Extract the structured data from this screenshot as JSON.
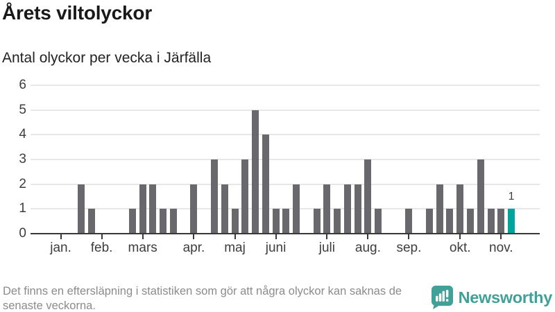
{
  "title": "Årets viltolyckor",
  "subtitle": "Antal olyckor per vecka i Järfälla",
  "chart_data": {
    "type": "bar",
    "title": "Årets viltolyckor",
    "subtitle": "Antal olyckor per vecka i Järfälla",
    "x_description": "veckor (weeks of the year, jan–nov)",
    "values_per_week": [
      0,
      0,
      2,
      1,
      0,
      0,
      0,
      1,
      2,
      2,
      1,
      1,
      0,
      2,
      0,
      3,
      2,
      1,
      3,
      5,
      4,
      1,
      1,
      2,
      0,
      1,
      2,
      1,
      2,
      2,
      3,
      1,
      0,
      0,
      1,
      0,
      1,
      2,
      1,
      2,
      1,
      3,
      1,
      1,
      1
    ],
    "first_week": 1,
    "highlight_week": 45,
    "annotation": {
      "week": 45,
      "label": "1"
    },
    "yticks": [
      0,
      1,
      2,
      3,
      4,
      5,
      6
    ],
    "ylim": [
      0,
      6
    ],
    "grid": true,
    "legend": "none",
    "month_ticks": [
      {
        "label": "jan.",
        "week": 1
      },
      {
        "label": "feb.",
        "week": 5
      },
      {
        "label": "mars",
        "week": 9
      },
      {
        "label": "apr.",
        "week": 14
      },
      {
        "label": "maj",
        "week": 18
      },
      {
        "label": "juni",
        "week": 22
      },
      {
        "label": "juli",
        "week": 27
      },
      {
        "label": "aug.",
        "week": 31
      },
      {
        "label": "sep.",
        "week": 35
      },
      {
        "label": "okt.",
        "week": 40
      },
      {
        "label": "nov.",
        "week": 44
      }
    ],
    "colors": {
      "bar": "#69696d",
      "highlight": "#00a49a",
      "axis": "#383838",
      "grid": "#e7e7e7",
      "tick_label": "#3d3d3d"
    }
  },
  "footer": {
    "note": "Det finns en eftersläpning i statistiken som gör att några olyckor kan saknas de senaste veckorna."
  },
  "branding": {
    "name": "Newsworthy",
    "color": "#41a098",
    "logo_icon": "newsworthy-chart-bubble-icon"
  }
}
